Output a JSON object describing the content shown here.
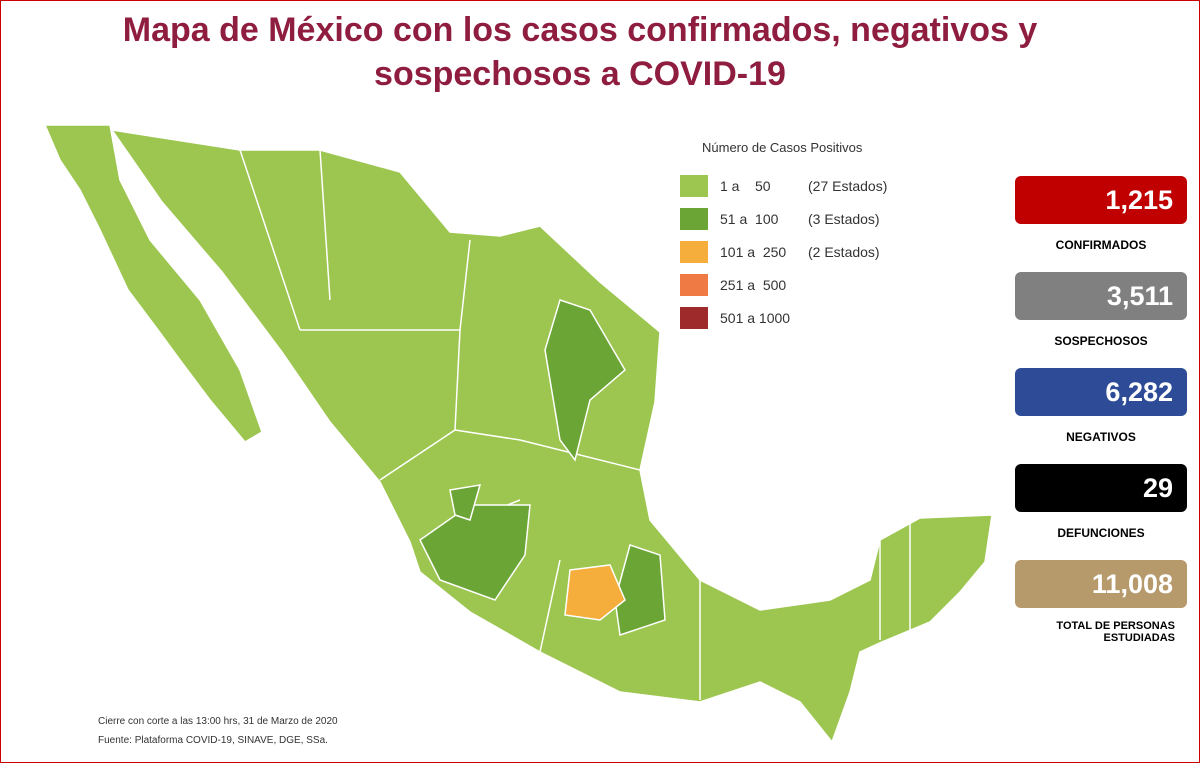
{
  "header": {
    "title_lines": [
      "Mapa de México con los casos confirmados, negativos y",
      "sospechosos a COVID-19"
    ]
  },
  "legend": {
    "title": "Número de Casos Positivos",
    "items": [
      {
        "range": "1 a    50",
        "count": "(27 Estados)",
        "color": "#9cc64f"
      },
      {
        "range": "51 a  100",
        "count": "(3 Estados)",
        "color": "#6aa536"
      },
      {
        "range": "101 a  250",
        "count": "(2 Estados)",
        "color": "#f5ad3b"
      },
      {
        "range": "251 a  500",
        "color": "#ef7a43"
      },
      {
        "range": "501 a 1000",
        "color": "#9e2a2b"
      }
    ]
  },
  "stats": [
    {
      "value": "1,215",
      "label": "CONFIRMADOS",
      "color": "#c00000"
    },
    {
      "value": "3,511",
      "label": "SOSPECHOSOS",
      "color": "#808080"
    },
    {
      "value": "6,282",
      "label": "NEGATIVOS",
      "color": "#2e4b97"
    },
    {
      "value": "29",
      "label": "DEFUNCIONES",
      "color": "#000000"
    },
    {
      "value": "11,008",
      "label": "TOTAL DE PERSONAS ESTUDIADAS",
      "color": "#b79a6c"
    }
  ],
  "footer": {
    "notes": [
      "Cierre con corte a las 13:00 hrs, 31 de Marzo de 2020",
      "Fuente: Plataforma COVID-19, SINAVE, DGE, SSa."
    ]
  }
}
